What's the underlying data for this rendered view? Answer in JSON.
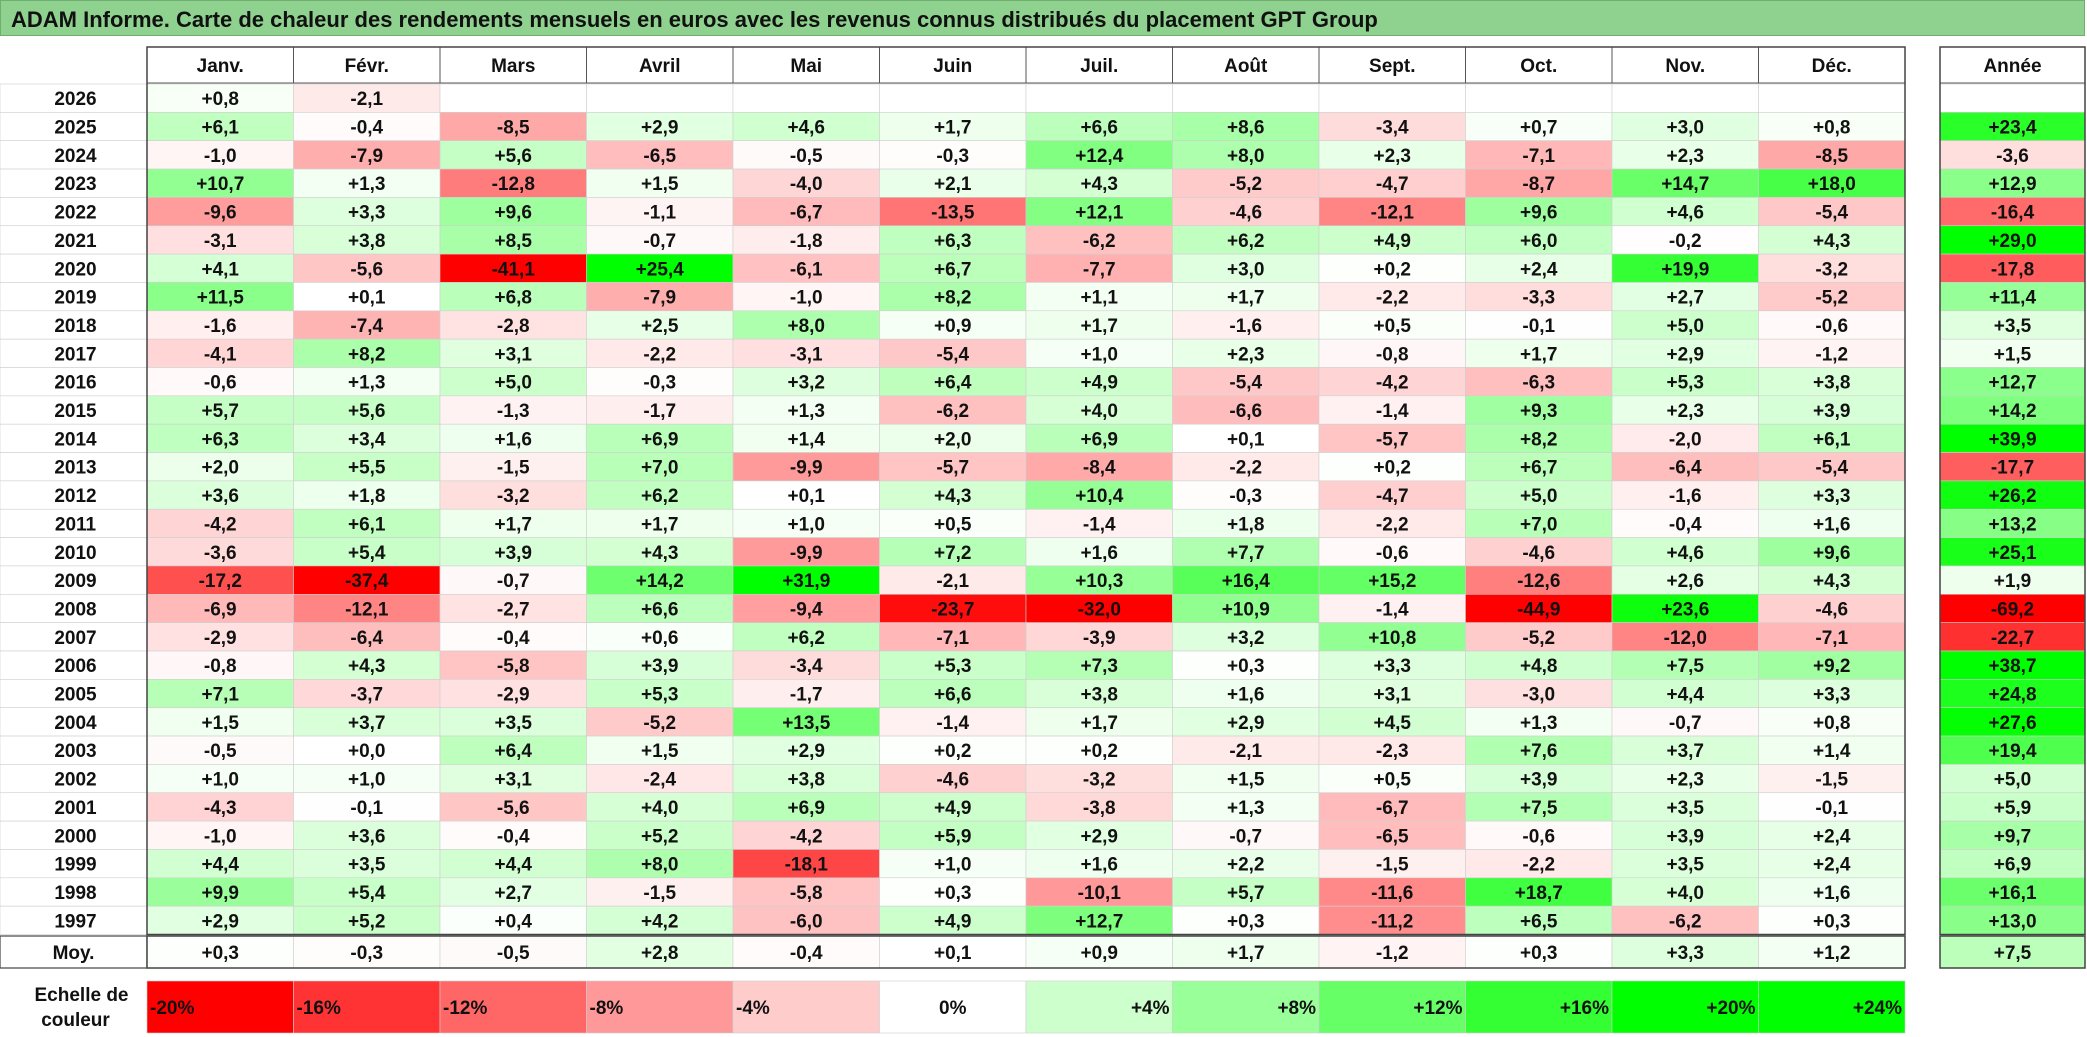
{
  "title": "ADAM Informe. Carte de chaleur des rendements mensuels en euros avec les revenus connus distribués du placement GPT Group",
  "chart_data": {
    "type": "heatmap",
    "months": [
      "Janv.",
      "Févr.",
      "Mars",
      "Avril",
      "Mai",
      "Juin",
      "Juil.",
      "Août",
      "Sept.",
      "Oct.",
      "Nov.",
      "Déc."
    ],
    "year_header": "Année",
    "rows": [
      {
        "year": "2026",
        "values": [
          "+0,8",
          "-2,1",
          "",
          "",
          "",
          "",
          "",
          "",
          "",
          "",
          "",
          ""
        ],
        "annual": ""
      },
      {
        "year": "2025",
        "values": [
          "+6,1",
          "-0,4",
          "-8,5",
          "+2,9",
          "+4,6",
          "+1,7",
          "+6,6",
          "+8,6",
          "-3,4",
          "+0,7",
          "+3,0",
          "+0,8"
        ],
        "annual": "+23,4"
      },
      {
        "year": "2024",
        "values": [
          "-1,0",
          "-7,9",
          "+5,6",
          "-6,5",
          "-0,5",
          "-0,3",
          "+12,4",
          "+8,0",
          "+2,3",
          "-7,1",
          "+2,3",
          "-8,5"
        ],
        "annual": "-3,6"
      },
      {
        "year": "2023",
        "values": [
          "+10,7",
          "+1,3",
          "-12,8",
          "+1,5",
          "-4,0",
          "+2,1",
          "+4,3",
          "-5,2",
          "-4,7",
          "-8,7",
          "+14,7",
          "+18,0"
        ],
        "annual": "+12,9"
      },
      {
        "year": "2022",
        "values": [
          "-9,6",
          "+3,3",
          "+9,6",
          "-1,1",
          "-6,7",
          "-13,5",
          "+12,1",
          "-4,6",
          "-12,1",
          "+9,6",
          "+4,6",
          "-5,4"
        ],
        "annual": "-16,4"
      },
      {
        "year": "2021",
        "values": [
          "-3,1",
          "+3,8",
          "+8,5",
          "-0,7",
          "-1,8",
          "+6,3",
          "-6,2",
          "+6,2",
          "+4,9",
          "+6,0",
          "-0,2",
          "+4,3"
        ],
        "annual": "+29,0"
      },
      {
        "year": "2020",
        "values": [
          "+4,1",
          "-5,6",
          "-41,1",
          "+25,4",
          "-6,1",
          "+6,7",
          "-7,7",
          "+3,0",
          "+0,2",
          "+2,4",
          "+19,9",
          "-3,2"
        ],
        "annual": "-17,8"
      },
      {
        "year": "2019",
        "values": [
          "+11,5",
          "+0,1",
          "+6,8",
          "-7,9",
          "-1,0",
          "+8,2",
          "+1,1",
          "+1,7",
          "-2,2",
          "-3,3",
          "+2,7",
          "-5,2"
        ],
        "annual": "+11,4"
      },
      {
        "year": "2018",
        "values": [
          "-1,6",
          "-7,4",
          "-2,8",
          "+2,5",
          "+8,0",
          "+0,9",
          "+1,7",
          "-1,6",
          "+0,5",
          "-0,1",
          "+5,0",
          "-0,6"
        ],
        "annual": "+3,5"
      },
      {
        "year": "2017",
        "values": [
          "-4,1",
          "+8,2",
          "+3,1",
          "-2,2",
          "-3,1",
          "-5,4",
          "+1,0",
          "+2,3",
          "-0,8",
          "+1,7",
          "+2,9",
          "-1,2"
        ],
        "annual": "+1,5"
      },
      {
        "year": "2016",
        "values": [
          "-0,6",
          "+1,3",
          "+5,0",
          "-0,3",
          "+3,2",
          "+6,4",
          "+4,9",
          "-5,4",
          "-4,2",
          "-6,3",
          "+5,3",
          "+3,8"
        ],
        "annual": "+12,7"
      },
      {
        "year": "2015",
        "values": [
          "+5,7",
          "+5,6",
          "-1,3",
          "-1,7",
          "+1,3",
          "-6,2",
          "+4,0",
          "-6,6",
          "-1,4",
          "+9,3",
          "+2,3",
          "+3,9"
        ],
        "annual": "+14,2"
      },
      {
        "year": "2014",
        "values": [
          "+6,3",
          "+3,4",
          "+1,6",
          "+6,9",
          "+1,4",
          "+2,0",
          "+6,9",
          "+0,1",
          "-5,7",
          "+8,2",
          "-2,0",
          "+6,1"
        ],
        "annual": "+39,9"
      },
      {
        "year": "2013",
        "values": [
          "+2,0",
          "+5,5",
          "-1,5",
          "+7,0",
          "-9,9",
          "-5,7",
          "-8,4",
          "-2,2",
          "+0,2",
          "+6,7",
          "-6,4",
          "-5,4"
        ],
        "annual": "-17,7"
      },
      {
        "year": "2012",
        "values": [
          "+3,6",
          "+1,8",
          "-3,2",
          "+6,2",
          "+0,1",
          "+4,3",
          "+10,4",
          "-0,3",
          "-4,7",
          "+5,0",
          "-1,6",
          "+3,3"
        ],
        "annual": "+26,2"
      },
      {
        "year": "2011",
        "values": [
          "-4,2",
          "+6,1",
          "+1,7",
          "+1,7",
          "+1,0",
          "+0,5",
          "-1,4",
          "+1,8",
          "-2,2",
          "+7,0",
          "-0,4",
          "+1,6"
        ],
        "annual": "+13,2"
      },
      {
        "year": "2010",
        "values": [
          "-3,6",
          "+5,4",
          "+3,9",
          "+4,3",
          "-9,9",
          "+7,2",
          "+1,6",
          "+7,7",
          "-0,6",
          "-4,6",
          "+4,6",
          "+9,6"
        ],
        "annual": "+25,1"
      },
      {
        "year": "2009",
        "values": [
          "-17,2",
          "-37,4",
          "-0,7",
          "+14,2",
          "+31,9",
          "-2,1",
          "+10,3",
          "+16,4",
          "+15,2",
          "-12,6",
          "+2,6",
          "+4,3"
        ],
        "annual": "+1,9"
      },
      {
        "year": "2008",
        "values": [
          "-6,9",
          "-12,1",
          "-2,7",
          "+6,6",
          "-9,4",
          "-23,7",
          "-32,0",
          "+10,9",
          "-1,4",
          "-44,9",
          "+23,6",
          "-4,6"
        ],
        "annual": "-69,2"
      },
      {
        "year": "2007",
        "values": [
          "-2,9",
          "-6,4",
          "-0,4",
          "+0,6",
          "+6,2",
          "-7,1",
          "-3,9",
          "+3,2",
          "+10,8",
          "-5,2",
          "-12,0",
          "-7,1"
        ],
        "annual": "-22,7"
      },
      {
        "year": "2006",
        "values": [
          "-0,8",
          "+4,3",
          "-5,8",
          "+3,9",
          "-3,4",
          "+5,3",
          "+7,3",
          "+0,3",
          "+3,3",
          "+4,8",
          "+7,5",
          "+9,2"
        ],
        "annual": "+38,7"
      },
      {
        "year": "2005",
        "values": [
          "+7,1",
          "-3,7",
          "-2,9",
          "+5,3",
          "-1,7",
          "+6,6",
          "+3,8",
          "+1,6",
          "+3,1",
          "-3,0",
          "+4,4",
          "+3,3"
        ],
        "annual": "+24,8"
      },
      {
        "year": "2004",
        "values": [
          "+1,5",
          "+3,7",
          "+3,5",
          "-5,2",
          "+13,5",
          "-1,4",
          "+1,7",
          "+2,9",
          "+4,5",
          "+1,3",
          "-0,7",
          "+0,8"
        ],
        "annual": "+27,6"
      },
      {
        "year": "2003",
        "values": [
          "-0,5",
          "+0,0",
          "+6,4",
          "+1,5",
          "+2,9",
          "+0,2",
          "+0,2",
          "-2,1",
          "-2,3",
          "+7,6",
          "+3,7",
          "+1,4"
        ],
        "annual": "+19,4"
      },
      {
        "year": "2002",
        "values": [
          "+1,0",
          "+1,0",
          "+3,1",
          "-2,4",
          "+3,8",
          "-4,6",
          "-3,2",
          "+1,5",
          "+0,5",
          "+3,9",
          "+2,3",
          "-1,5"
        ],
        "annual": "+5,0"
      },
      {
        "year": "2001",
        "values": [
          "-4,3",
          "-0,1",
          "-5,6",
          "+4,0",
          "+6,9",
          "+4,9",
          "-3,8",
          "+1,3",
          "-6,7",
          "+7,5",
          "+3,5",
          "-0,1"
        ],
        "annual": "+5,9"
      },
      {
        "year": "2000",
        "values": [
          "-1,0",
          "+3,6",
          "-0,4",
          "+5,2",
          "-4,2",
          "+5,9",
          "+2,9",
          "-0,7",
          "-6,5",
          "-0,6",
          "+3,9",
          "+2,4"
        ],
        "annual": "+9,7"
      },
      {
        "year": "1999",
        "values": [
          "+4,4",
          "+3,5",
          "+4,4",
          "+8,0",
          "-18,1",
          "+1,0",
          "+1,6",
          "+2,2",
          "-1,5",
          "-2,2",
          "+3,5",
          "+2,4"
        ],
        "annual": "+6,9"
      },
      {
        "year": "1998",
        "values": [
          "+9,9",
          "+5,4",
          "+2,7",
          "-1,5",
          "-5,8",
          "+0,3",
          "-10,1",
          "+5,7",
          "-11,6",
          "+18,7",
          "+4,0",
          "+1,6"
        ],
        "annual": "+16,1"
      },
      {
        "year": "1997",
        "values": [
          "+2,9",
          "+5,2",
          "+0,4",
          "+4,2",
          "-6,0",
          "+4,9",
          "+12,7",
          "+0,3",
          "-11,2",
          "+6,5",
          "-6,2",
          "+0,3"
        ],
        "annual": "+13,0"
      }
    ],
    "average": {
      "label": "Moy.",
      "values": [
        "+0,3",
        "-0,3",
        "-0,5",
        "+2,8",
        "-0,4",
        "+0,1",
        "+0,9",
        "+1,7",
        "-1,2",
        "+0,3",
        "+3,3",
        "+1,2"
      ],
      "annual": "+7,5"
    },
    "scale": {
      "label_line1": "Echelle de",
      "label_line2": "couleur",
      "stops": [
        {
          "label": "-20%",
          "value": -20
        },
        {
          "label": "-16%",
          "value": -16
        },
        {
          "label": "-12%",
          "value": -12
        },
        {
          "label": "-8%",
          "value": -8
        },
        {
          "label": "-4%",
          "value": -4
        },
        {
          "label": "0%",
          "value": 0
        },
        {
          "label": "+4%",
          "value": 4
        },
        {
          "label": "+8%",
          "value": 8
        },
        {
          "label": "+12%",
          "value": 12
        },
        {
          "label": "+16%",
          "value": 16
        },
        {
          "label": "+20%",
          "value": 20
        },
        {
          "label": "+24%",
          "value": 24
        }
      ]
    },
    "colors": {
      "negative_max": "#ff0000",
      "neutral": "#ffffff",
      "positive_max": "#00ff00",
      "title_bar": "#8fd28f"
    }
  }
}
